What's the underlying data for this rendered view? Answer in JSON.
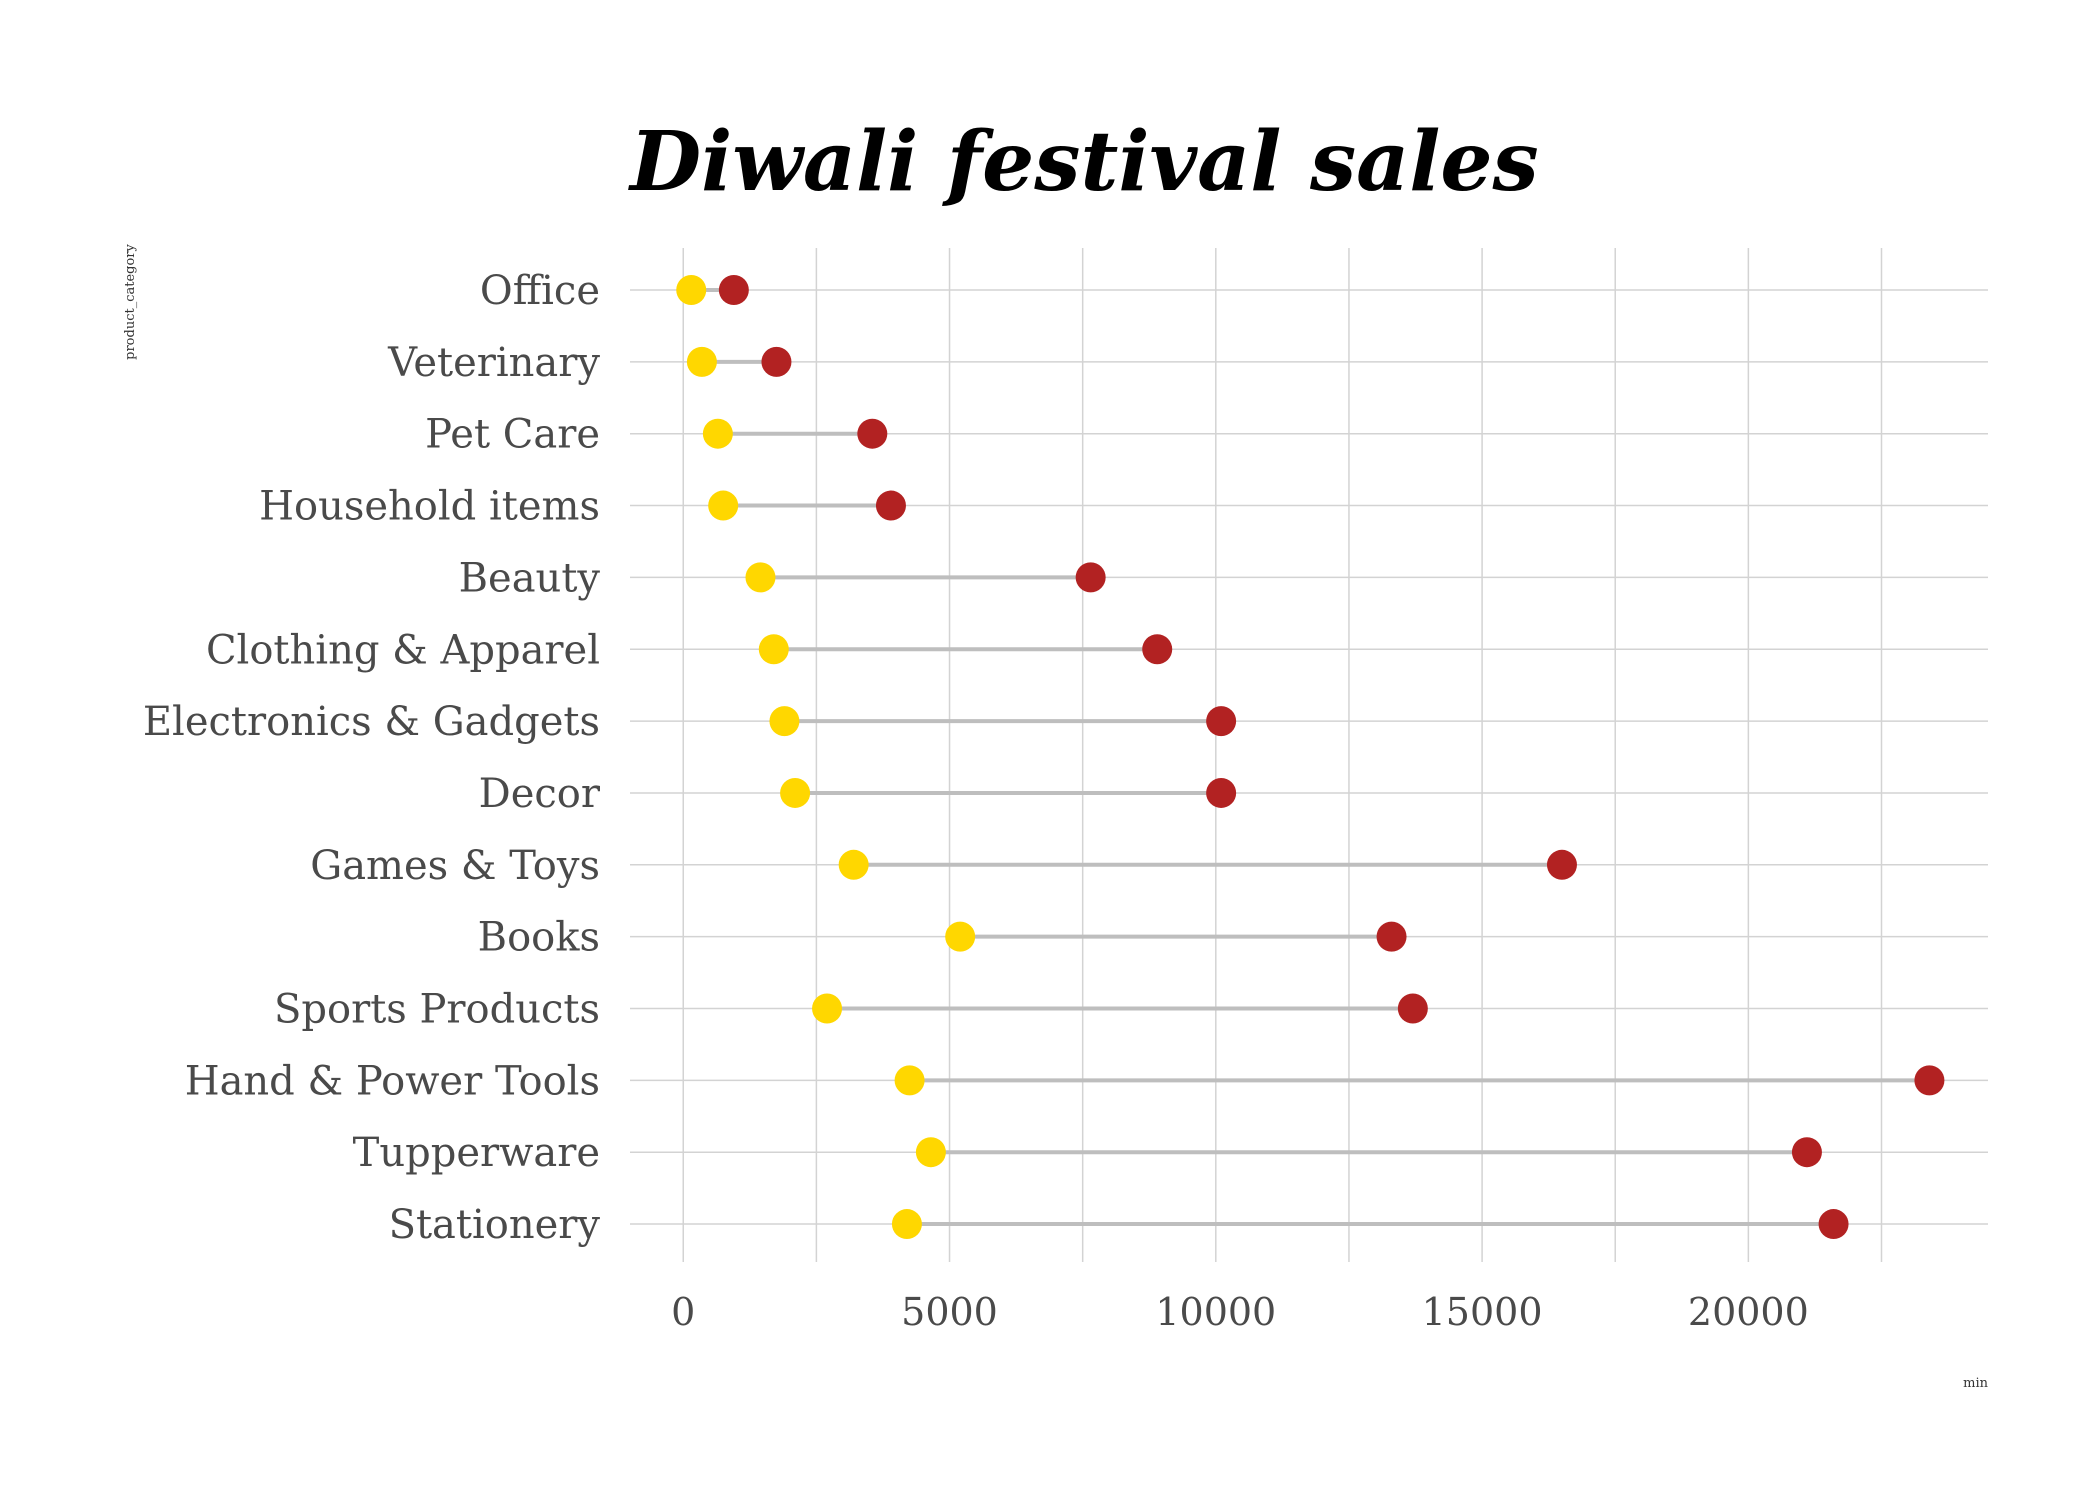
{
  "chart_data": {
    "type": "dumbbell",
    "title": "Diwali festival sales",
    "xlabel": "min",
    "ylabel": "product_category",
    "xlim": [
      -1000,
      24500
    ],
    "xticks": [
      0,
      5000,
      10000,
      15000,
      20000
    ],
    "grid": true,
    "categories": [
      "Office",
      "Veterinary",
      "Pet Care",
      "Household items",
      "Beauty",
      "Clothing & Apparel",
      "Electronics & Gadgets",
      "Decor",
      "Games & Toys",
      "Books",
      "Sports Products",
      "Hand & Power Tools",
      "Tupperware",
      "Stationery"
    ],
    "series": [
      {
        "color": "#FFD700",
        "values": [
          150,
          350,
          650,
          750,
          1450,
          1700,
          1900,
          2100,
          3200,
          5200,
          2700,
          4250,
          4650,
          4200
        ]
      },
      {
        "color": "#B22222",
        "values": [
          950,
          1750,
          3550,
          3900,
          7650,
          8900,
          10100,
          10100,
          16500,
          13300,
          13700,
          23400,
          21100,
          21600
        ]
      }
    ],
    "connector_color": "#BEBEBE",
    "grid_color": "#D3D3D3"
  }
}
